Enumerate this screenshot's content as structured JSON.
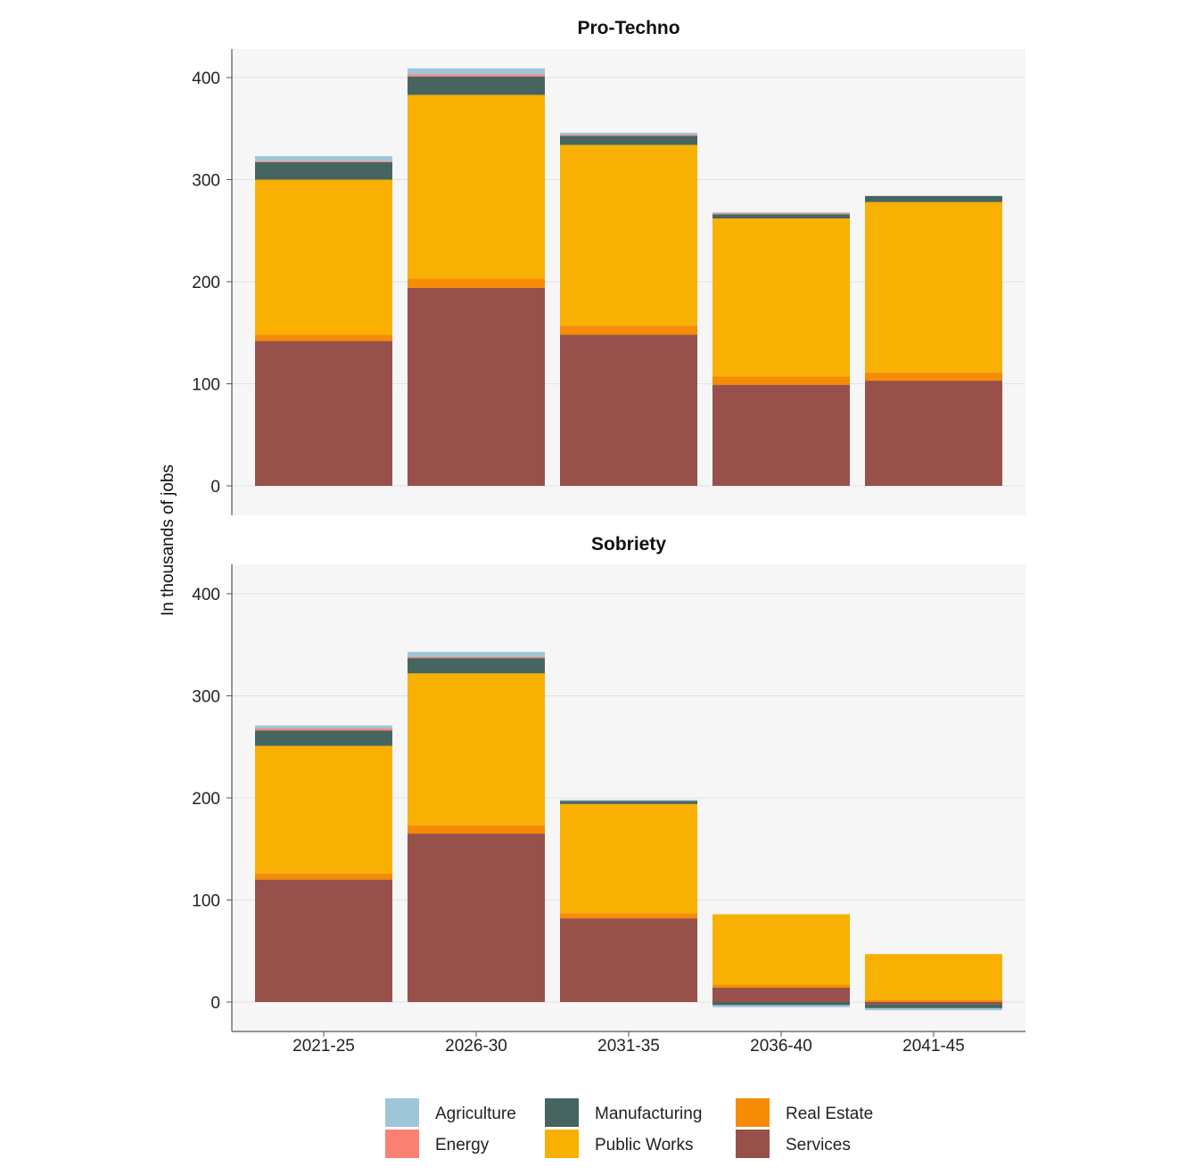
{
  "chart_data": {
    "type": "bar",
    "stacked": true,
    "ylabel": "In thousands of jobs",
    "categories": [
      "2021-25",
      "2026-30",
      "2031-35",
      "2036-40",
      "2041-45"
    ],
    "ylim": [
      -30,
      430
    ],
    "yticks": [
      0,
      100,
      200,
      300,
      400
    ],
    "grid": true,
    "legend_position": "bottom",
    "legend": [
      {
        "name": "Agriculture",
        "color": "#9fc6d8"
      },
      {
        "name": "Manufacturing",
        "color": "#466560"
      },
      {
        "name": "Real Estate",
        "color": "#f68b06"
      },
      {
        "name": "Energy",
        "color": "#fa8072"
      },
      {
        "name": "Public Works",
        "color": "#f8b002"
      },
      {
        "name": "Services",
        "color": "#97504a"
      }
    ],
    "stack_order": [
      "Services",
      "Real Estate",
      "Public Works",
      "Manufacturing",
      "Energy",
      "Agriculture"
    ],
    "panels": [
      {
        "title": "Pro-Techno",
        "series": [
          {
            "name": "Services",
            "values": [
              142,
              194,
              148,
              99,
              103
            ]
          },
          {
            "name": "Real Estate",
            "values": [
              6,
              9,
              9,
              8,
              8
            ]
          },
          {
            "name": "Public Works",
            "values": [
              152,
              180,
              177,
              155,
              167
            ]
          },
          {
            "name": "Manufacturing",
            "values": [
              17,
              18,
              9,
              4,
              6
            ]
          },
          {
            "name": "Energy",
            "values": [
              1,
              2,
              1,
              1,
              0
            ]
          },
          {
            "name": "Agriculture",
            "values": [
              5,
              6,
              2,
              1,
              0
            ]
          }
        ]
      },
      {
        "title": "Sobriety",
        "series": [
          {
            "name": "Services",
            "values": [
              120,
              165,
              82,
              14,
              -2
            ]
          },
          {
            "name": "Real Estate",
            "values": [
              6,
              8,
              5,
              3,
              2
            ]
          },
          {
            "name": "Public Works",
            "values": [
              125,
              149,
              107,
              69,
              45
            ]
          },
          {
            "name": "Manufacturing",
            "values": [
              15,
              15,
              3,
              -3,
              -4
            ]
          },
          {
            "name": "Energy",
            "values": [
              2,
              1,
              0,
              0,
              0
            ]
          },
          {
            "name": "Agriculture",
            "values": [
              3,
              5,
              1,
              -2,
              -2
            ]
          }
        ]
      }
    ]
  }
}
